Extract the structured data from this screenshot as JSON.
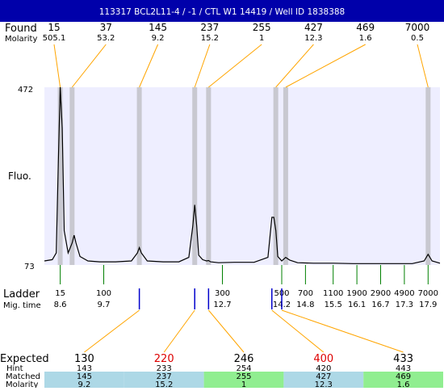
{
  "header": {
    "title": "113317  BCL2L11-4 / -1 / CTL W1 14419 / Well ID 1838388",
    "bg_color": "#0000aa"
  },
  "labels": {
    "found": "Found",
    "molarity": "Molarity",
    "fluo": "Fluo.",
    "ladder": "Ladder",
    "mig_time": "Mig. time",
    "expected": "Expected",
    "hint": "Hint",
    "matched": "Matched",
    "molarity_bottom": "Molarity"
  },
  "colors": {
    "plot_bg": "#eeeeff",
    "band": "#c8c8d0",
    "trace": "#000000",
    "connector": "#ffa500",
    "ladder_tick": "#008000",
    "marker_tick": "#0000cc",
    "expected_ok": "#000000",
    "expected_flag": "#dd0000",
    "cell_blue": "#add8e6",
    "cell_green": "#90ee90"
  },
  "chart_data": {
    "type": "line",
    "title": "113317  BCL2L11-4 / -1 / CTL W1 14419 / Well ID 1838388",
    "ylabel": "Fluo.",
    "xlabel": "Mig. time",
    "xlim": [
      8.2,
      18.2
    ],
    "ylim": [
      73,
      472
    ],
    "y_ticks": [
      "472",
      "73"
    ],
    "found_peaks": [
      {
        "size": "15",
        "molarity": "505.1",
        "time": 8.6
      },
      {
        "size": "37",
        "molarity": "53.2",
        "time": 8.9
      },
      {
        "size": "145",
        "molarity": "9.2",
        "time": 10.6
      },
      {
        "size": "237",
        "molarity": "15.2",
        "time": 12.0
      },
      {
        "size": "255",
        "molarity": "1",
        "time": 12.35
      },
      {
        "size": "427",
        "molarity": "12.3",
        "time": 14.05
      },
      {
        "size": "469",
        "molarity": "1.6",
        "time": 14.3
      },
      {
        "size": "7000",
        "molarity": "0.5",
        "time": 17.9
      }
    ],
    "ladder": [
      {
        "size": "15",
        "time": "8.6"
      },
      {
        "size": "100",
        "time": "9.7"
      },
      {
        "size": "300",
        "time": "12.7"
      },
      {
        "size": "500",
        "time": "14.2"
      },
      {
        "size": "700",
        "time": "14.8"
      },
      {
        "size": "1100",
        "time": "15.5"
      },
      {
        "size": "1900",
        "time": "16.1"
      },
      {
        "size": "2900",
        "time": "16.7"
      },
      {
        "size": "4900",
        "time": "17.3"
      },
      {
        "size": "7000",
        "time": "17.9"
      }
    ],
    "marker_times": [
      10.6,
      12.0,
      12.35,
      13.95,
      14.2
    ],
    "trace": [
      [
        8.2,
        82
      ],
      [
        8.4,
        85
      ],
      [
        8.5,
        100
      ],
      [
        8.55,
        300
      ],
      [
        8.6,
        472
      ],
      [
        8.65,
        380
      ],
      [
        8.7,
        150
      ],
      [
        8.8,
        100
      ],
      [
        8.9,
        122
      ],
      [
        8.95,
        140
      ],
      [
        9.0,
        122
      ],
      [
        9.1,
        92
      ],
      [
        9.3,
        82
      ],
      [
        9.6,
        80
      ],
      [
        10.0,
        80
      ],
      [
        10.4,
        82
      ],
      [
        10.55,
        100
      ],
      [
        10.6,
        112
      ],
      [
        10.65,
        100
      ],
      [
        10.8,
        82
      ],
      [
        11.2,
        80
      ],
      [
        11.6,
        80
      ],
      [
        11.85,
        90
      ],
      [
        11.95,
        160
      ],
      [
        12.0,
        208
      ],
      [
        12.05,
        160
      ],
      [
        12.1,
        95
      ],
      [
        12.2,
        85
      ],
      [
        12.3,
        82
      ],
      [
        12.35,
        83
      ],
      [
        12.4,
        80
      ],
      [
        12.6,
        78
      ],
      [
        13.0,
        79
      ],
      [
        13.5,
        79
      ],
      [
        13.85,
        90
      ],
      [
        13.95,
        180
      ],
      [
        14.0,
        180
      ],
      [
        14.05,
        150
      ],
      [
        14.1,
        92
      ],
      [
        14.2,
        82
      ],
      [
        14.3,
        90
      ],
      [
        14.4,
        84
      ],
      [
        14.6,
        78
      ],
      [
        15.0,
        77
      ],
      [
        15.5,
        77
      ],
      [
        16.0,
        76
      ],
      [
        16.5,
        76
      ],
      [
        17.0,
        76
      ],
      [
        17.5,
        76
      ],
      [
        17.8,
        82
      ],
      [
        17.9,
        97
      ],
      [
        18.0,
        82
      ],
      [
        18.2,
        77
      ]
    ],
    "expected": [
      {
        "size": "130",
        "hint": "143",
        "matched": "145",
        "molarity": "9.2",
        "flag": false,
        "cell": "blue"
      },
      {
        "size": "220",
        "hint": "233",
        "matched": "237",
        "molarity": "15.2",
        "flag": true,
        "cell": "blue"
      },
      {
        "size": "246",
        "hint": "254",
        "matched": "255",
        "molarity": "1",
        "flag": false,
        "cell": "green"
      },
      {
        "size": "400",
        "hint": "420",
        "matched": "427",
        "molarity": "12.3",
        "flag": true,
        "cell": "blue"
      },
      {
        "size": "433",
        "hint": "443",
        "matched": "469",
        "molarity": "1.6",
        "flag": false,
        "cell": "green"
      }
    ]
  }
}
